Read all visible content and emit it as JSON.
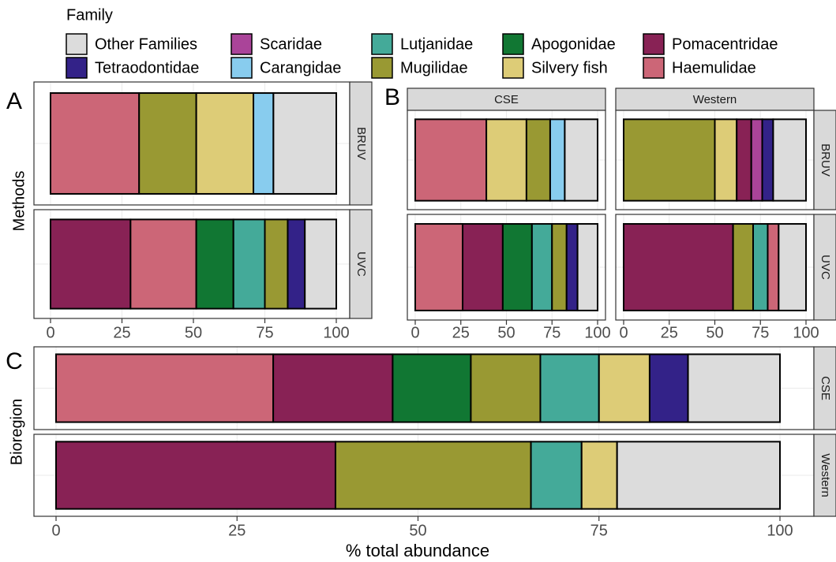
{
  "legend": {
    "title": "Family",
    "items": [
      {
        "name": "Other Families",
        "color": "#dcdcdc"
      },
      {
        "name": "Tetraodontidae",
        "color": "#332288"
      },
      {
        "name": "Scaridae",
        "color": "#aa4499"
      },
      {
        "name": "Carangidae",
        "color": "#88ccee"
      },
      {
        "name": "Lutjanidae",
        "color": "#44aa99"
      },
      {
        "name": "Mugilidae",
        "color": "#999933"
      },
      {
        "name": "Apogonidae",
        "color": "#117733"
      },
      {
        "name": "Silvery fish",
        "color": "#ddcc77"
      },
      {
        "name": "Pomacentridae",
        "color": "#882255"
      },
      {
        "name": "Haemulidae",
        "color": "#cc6677"
      }
    ]
  },
  "chart_data": [
    {
      "type": "stacked-bar",
      "panel": "A",
      "ylabel": "Methods",
      "rows": [
        "BRUV",
        "UVC"
      ],
      "xlim": [
        0,
        100
      ],
      "xticks": [
        0,
        25,
        50,
        75,
        100
      ],
      "bars": [
        [
          {
            "family": "Haemulidae",
            "value": 31
          },
          {
            "family": "Mugilidae",
            "value": 20
          },
          {
            "family": "Silvery fish",
            "value": 20
          },
          {
            "family": "Carangidae",
            "value": 7
          },
          {
            "family": "Other Families",
            "value": 22
          }
        ],
        [
          {
            "family": "Pomacentridae",
            "value": 28
          },
          {
            "family": "Haemulidae",
            "value": 23
          },
          {
            "family": "Apogonidae",
            "value": 13
          },
          {
            "family": "Lutjanidae",
            "value": 11
          },
          {
            "family": "Mugilidae",
            "value": 8
          },
          {
            "family": "Tetraodontidae",
            "value": 6
          },
          {
            "family": "Other Families",
            "value": 11
          }
        ]
      ]
    },
    {
      "type": "stacked-bar-grid",
      "panel": "B",
      "rows": [
        "BRUV",
        "UVC"
      ],
      "xlim": [
        0,
        100
      ],
      "xticks": [
        0,
        25,
        50,
        75,
        100
      ],
      "columns": [
        {
          "strip": "CSE",
          "bars": [
            [
              {
                "family": "Haemulidae",
                "value": 39
              },
              {
                "family": "Silvery fish",
                "value": 22
              },
              {
                "family": "Mugilidae",
                "value": 13
              },
              {
                "family": "Carangidae",
                "value": 8
              },
              {
                "family": "Other Families",
                "value": 18
              }
            ],
            [
              {
                "family": "Haemulidae",
                "value": 26
              },
              {
                "family": "Pomacentridae",
                "value": 22
              },
              {
                "family": "Apogonidae",
                "value": 16
              },
              {
                "family": "Lutjanidae",
                "value": 11
              },
              {
                "family": "Mugilidae",
                "value": 8
              },
              {
                "family": "Tetraodontidae",
                "value": 6
              },
              {
                "family": "Other Families",
                "value": 11
              }
            ]
          ]
        },
        {
          "strip": "Western",
          "bars": [
            [
              {
                "family": "Mugilidae",
                "value": 50
              },
              {
                "family": "Silvery fish",
                "value": 12
              },
              {
                "family": "Pomacentridae",
                "value": 8
              },
              {
                "family": "Scaridae",
                "value": 6
              },
              {
                "family": "Tetraodontidae",
                "value": 6
              },
              {
                "family": "Other Families",
                "value": 18
              }
            ],
            [
              {
                "family": "Pomacentridae",
                "value": 60
              },
              {
                "family": "Mugilidae",
                "value": 11
              },
              {
                "family": "Lutjanidae",
                "value": 8
              },
              {
                "family": "Haemulidae",
                "value": 6
              },
              {
                "family": "Other Families",
                "value": 15
              }
            ]
          ]
        }
      ]
    },
    {
      "type": "stacked-bar",
      "panel": "C",
      "ylabel": "Bioregion",
      "xlabel": "% total abundance",
      "rows": [
        "CSE",
        "Western"
      ],
      "xlim": [
        0,
        100
      ],
      "xticks": [
        0,
        25,
        50,
        75,
        100
      ],
      "bars": [
        [
          {
            "family": "Haemulidae",
            "value": 30
          },
          {
            "family": "Pomacentridae",
            "value": 16.5
          },
          {
            "family": "Apogonidae",
            "value": 10.8
          },
          {
            "family": "Mugilidae",
            "value": 9.6
          },
          {
            "family": "Lutjanidae",
            "value": 8.1
          },
          {
            "family": "Silvery fish",
            "value": 7
          },
          {
            "family": "Tetraodontidae",
            "value": 5.3
          },
          {
            "family": "Other Families",
            "value": 12.7
          }
        ],
        [
          {
            "family": "Pomacentridae",
            "value": 38.6
          },
          {
            "family": "Mugilidae",
            "value": 27
          },
          {
            "family": "Lutjanidae",
            "value": 7
          },
          {
            "family": "Silvery fish",
            "value": 4.9
          },
          {
            "family": "Other Families",
            "value": 22.5
          }
        ]
      ]
    }
  ]
}
